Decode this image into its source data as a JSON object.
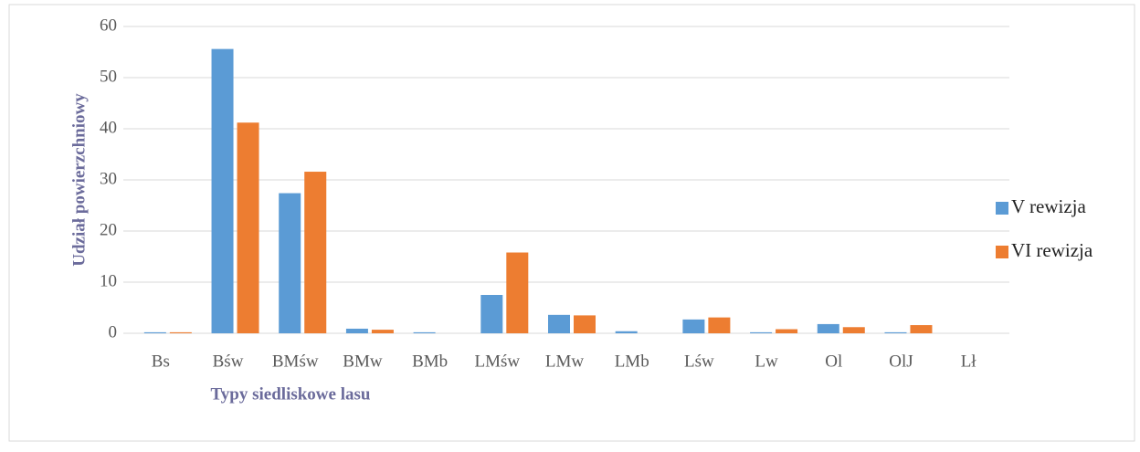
{
  "chart_data": {
    "type": "bar",
    "x_label": "Typy siedliskowe lasu",
    "y_label": "Udział powierzchniowy",
    "categories": [
      "Bs",
      "Bśw",
      "BMśw",
      "BMw",
      "BMb",
      "LMśw",
      "LMw",
      "LMb",
      "Lśw",
      "Lw",
      "Ol",
      "OlJ",
      "Lł"
    ],
    "series": [
      {
        "name": "V rewizja",
        "color": "#5b9bd5",
        "values": [
          0.2,
          55.6,
          27.4,
          0.9,
          0.2,
          7.5,
          3.6,
          0.4,
          2.7,
          0.2,
          1.8,
          0.2,
          0
        ]
      },
      {
        "name": "VI rewizja",
        "color": "#ed7d31",
        "values": [
          0.2,
          41.2,
          31.6,
          0.7,
          0,
          15.8,
          3.5,
          0,
          3.1,
          0.8,
          1.2,
          1.6,
          0
        ]
      }
    ],
    "ylim": [
      0,
      60
    ],
    "yticks": [
      0,
      10,
      20,
      30,
      40,
      50,
      60
    ],
    "grid": true,
    "legend": "right"
  }
}
